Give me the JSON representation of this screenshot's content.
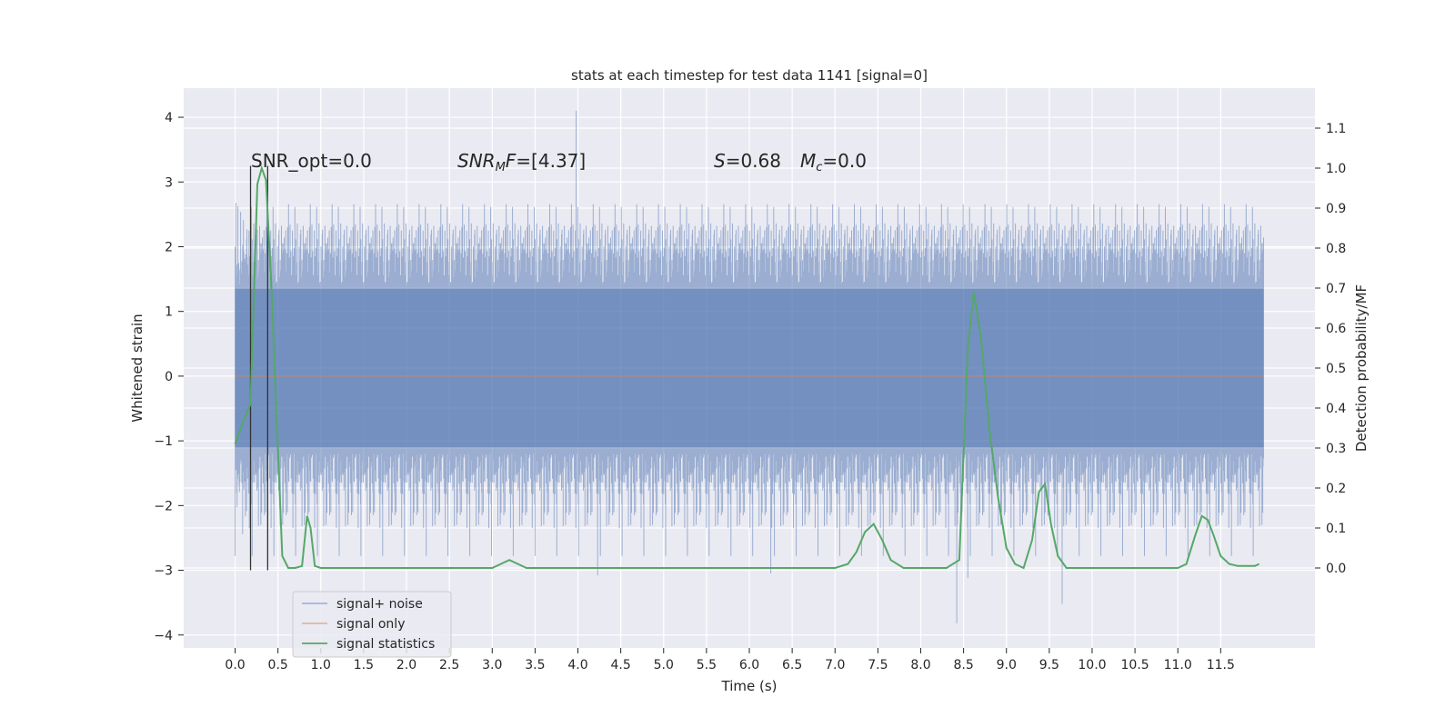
{
  "chart_data": {
    "type": "line",
    "title": "stats at each timestep for test data 1141 [signal=0]",
    "xlabel": "Time (s)",
    "ylabel": "Whitened strain",
    "y2label": "Detection probability/MF",
    "xlim": [
      -0.6,
      12.6
    ],
    "ylim": [
      -4.2,
      4.45
    ],
    "y2lim": [
      -0.2,
      1.2
    ],
    "x_ticks": [
      0.0,
      0.5,
      1.0,
      1.5,
      2.0,
      2.5,
      3.0,
      3.5,
      4.0,
      4.5,
      5.0,
      5.5,
      6.0,
      6.5,
      7.0,
      7.5,
      8.0,
      8.5,
      9.0,
      9.5,
      10.0,
      10.5,
      11.0,
      11.5
    ],
    "x_tick_labels": [
      "0.0",
      "0.5",
      "1.0",
      "1.5",
      "2.0",
      "2.5",
      "3.0",
      "3.5",
      "4.0",
      "4.5",
      "5.0",
      "5.5",
      "6.0",
      "6.5",
      "7.0",
      "7.5",
      "8.0",
      "8.5",
      "9.0",
      "9.5",
      "10.0",
      "10.5",
      "11.0",
      "11.5"
    ],
    "y_ticks": [
      -4,
      -3,
      -2,
      -1,
      0,
      1,
      2,
      3,
      4
    ],
    "y_tick_labels": [
      "−4",
      "−3",
      "−2",
      "−1",
      "0",
      "1",
      "2",
      "3",
      "4"
    ],
    "y2_ticks": [
      0.0,
      0.1,
      0.2,
      0.3,
      0.4,
      0.5,
      0.6,
      0.7,
      0.8,
      0.9,
      1.0,
      1.1
    ],
    "y2_tick_labels": [
      "0.0",
      "0.1",
      "0.2",
      "0.3",
      "0.4",
      "0.5",
      "0.6",
      "0.7",
      "0.8",
      "0.9",
      "1.0",
      "1.1"
    ],
    "grid": true,
    "legend_position": "lower-left",
    "annotations": {
      "snr_opt": "SNR_opt=0.0",
      "snr_mf": "=[4.37]",
      "snr_mf_symbol": "SNR",
      "snr_mf_sub": "M",
      "snr_mf_tail": "F",
      "s_symbol": "S",
      "s_value": "=0.68",
      "mc_symbol": "M",
      "mc_sub": "c",
      "mc_value": "=0.0"
    },
    "vertical_lines": [
      {
        "x": 0.18,
        "y_from": -3.0,
        "y_to": 3.25
      },
      {
        "x": 0.38,
        "y_from": -3.0,
        "y_to": 3.25
      }
    ],
    "series": [
      {
        "name": "signal+ noise",
        "color": "#4c72b0",
        "axis": "left",
        "description_type": "noise",
        "x_range": [
          0.0,
          12.0
        ],
        "band_inner": [
          -1.1,
          1.35
        ],
        "peaks": [
          {
            "x": 3.98,
            "y": 4.1
          },
          {
            "x": 8.42,
            "y": -3.82
          },
          {
            "x": 8.55,
            "y": -3.12
          },
          {
            "x": 9.65,
            "y": -3.52
          },
          {
            "x": 4.23,
            "y": -3.08
          },
          {
            "x": 6.25,
            "y": -3.05
          },
          {
            "x": 0.0,
            "y": -2.78
          }
        ]
      },
      {
        "name": "signal only",
        "color": "#dd8452",
        "axis": "left",
        "x": [
          0.0,
          12.0
        ],
        "y": [
          0.0,
          0.0
        ]
      },
      {
        "name": "signal statistics",
        "color": "#55a868",
        "axis": "right",
        "x": [
          0.0,
          0.1,
          0.18,
          0.26,
          0.31,
          0.36,
          0.42,
          0.48,
          0.55,
          0.62,
          0.7,
          0.78,
          0.84,
          0.88,
          0.93,
          1.0,
          1.1,
          2.0,
          2.8,
          3.0,
          3.1,
          3.2,
          3.3,
          3.4,
          3.6,
          4.0,
          7.0,
          7.15,
          7.25,
          7.35,
          7.45,
          7.55,
          7.65,
          7.8,
          8.0,
          8.3,
          8.45,
          8.55,
          8.62,
          8.7,
          8.8,
          8.9,
          9.0,
          9.1,
          9.2,
          9.3,
          9.38,
          9.45,
          9.52,
          9.6,
          9.7,
          9.9,
          10.5,
          11.0,
          11.1,
          11.2,
          11.28,
          11.35,
          11.42,
          11.5,
          11.6,
          11.7,
          11.9,
          11.95
        ],
        "y": [
          0.31,
          0.37,
          0.41,
          0.96,
          1.0,
          0.97,
          0.72,
          0.4,
          0.03,
          0.0,
          0.0,
          0.005,
          0.13,
          0.1,
          0.005,
          0.0,
          0.0,
          0.0,
          0.0,
          0.0,
          0.01,
          0.02,
          0.01,
          0.0,
          0.0,
          0.0,
          0.0,
          0.01,
          0.04,
          0.09,
          0.11,
          0.07,
          0.02,
          0.0,
          0.0,
          0.0,
          0.02,
          0.55,
          0.69,
          0.58,
          0.35,
          0.18,
          0.05,
          0.01,
          0.0,
          0.07,
          0.19,
          0.21,
          0.11,
          0.03,
          0.0,
          0.0,
          0.0,
          0.0,
          0.01,
          0.08,
          0.13,
          0.12,
          0.08,
          0.03,
          0.01,
          0.005,
          0.005,
          0.01
        ]
      }
    ]
  }
}
